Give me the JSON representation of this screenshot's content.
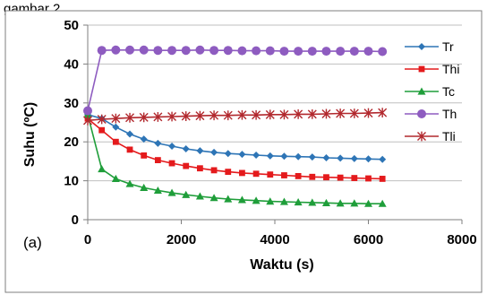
{
  "caption": "gambar 2.",
  "panel_label": "(a)",
  "colors": {
    "Tr": "#2e75b6",
    "Thi": "#e41a1c",
    "Tc": "#1f9e3a",
    "Th": "#8e5cc0",
    "Tli": "#b2292e"
  },
  "chart_data": {
    "type": "line",
    "xlabel": "Waktu (s)",
    "ylabel": "Suhu (ºC)",
    "xlim": [
      0,
      8000
    ],
    "ylim": [
      0,
      50
    ],
    "xticks": [
      0,
      2000,
      4000,
      6000,
      8000
    ],
    "yticks": [
      0,
      10,
      20,
      30,
      40,
      50
    ],
    "grid": "horizontal",
    "legend": "right",
    "x": [
      0,
      300,
      600,
      900,
      1200,
      1500,
      1800,
      2100,
      2400,
      2700,
      3000,
      3300,
      3600,
      3900,
      4200,
      4500,
      4800,
      5100,
      5400,
      5700,
      6000,
      6300
    ],
    "series": [
      {
        "name": "Tr",
        "marker": "diamond",
        "values": [
          27,
          26,
          23.8,
          22,
          20.7,
          19.6,
          18.9,
          18.2,
          17.7,
          17.3,
          17,
          16.8,
          16.6,
          16.4,
          16.3,
          16.2,
          16.1,
          15.9,
          15.8,
          15.7,
          15.6,
          15.5
        ]
      },
      {
        "name": "Thi",
        "marker": "square",
        "values": [
          26,
          23,
          20,
          18,
          16.5,
          15.3,
          14.5,
          13.8,
          13.2,
          12.7,
          12.3,
          12,
          11.8,
          11.6,
          11.4,
          11.2,
          11,
          10.9,
          10.8,
          10.7,
          10.6,
          10.5
        ]
      },
      {
        "name": "Tc",
        "marker": "triangle",
        "values": [
          27,
          13,
          10.5,
          9.2,
          8.2,
          7.5,
          6.9,
          6.4,
          6,
          5.6,
          5.3,
          5.1,
          4.9,
          4.7,
          4.6,
          4.5,
          4.4,
          4.3,
          4.2,
          4.2,
          4.1,
          4.1
        ]
      },
      {
        "name": "Th",
        "marker": "circle",
        "values": [
          28,
          43.5,
          43.6,
          43.6,
          43.6,
          43.5,
          43.5,
          43.5,
          43.6,
          43.5,
          43.5,
          43.4,
          43.4,
          43.4,
          43.3,
          43.3,
          43.3,
          43.3,
          43.3,
          43.3,
          43.3,
          43.2
        ]
      },
      {
        "name": "Tli",
        "marker": "star",
        "values": [
          25.5,
          25.8,
          26,
          26.2,
          26.3,
          26.4,
          26.5,
          26.6,
          26.7,
          26.8,
          26.8,
          26.9,
          26.9,
          27,
          27,
          27.1,
          27.1,
          27.2,
          27.3,
          27.3,
          27.4,
          27.5
        ]
      }
    ]
  }
}
